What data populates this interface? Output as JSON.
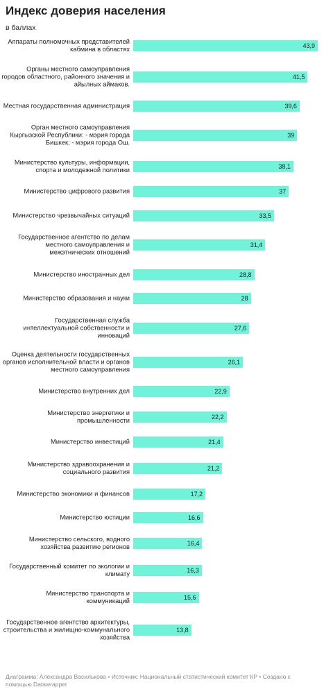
{
  "chart_data": {
    "type": "bar",
    "orientation": "horizontal",
    "title": "Индекс доверия населения",
    "subtitle": "в баллах",
    "color": "#70f3d9",
    "categories": [
      "Аппараты полномочных представителей\nкабмина в областях",
      "Органы местного самоуправления\nгородов областного, районного значения и\nайылных аймаков.",
      "Местная государственная администрация",
      "Орган местного самоуправления\nКыргызской Республики: - мэрия города\nБишкек; - мэрия города Ош.",
      "Министерство культуры, информации,\nспорта и молодежной политики",
      "Министерство цифрового развития",
      "Министерство чрезвычайных ситуаций",
      "Государственное агентство по делам\nместного самоуправления и\nмежэтнических отношений",
      "Министерство иностранных дел",
      "Министерство образования и науки",
      "Государственная служба\nинтеллектуальной собственности и\nинноваций",
      "Оценка деятельности государственных\nорганов исполнительной власти и органов\nместного самоуправления",
      "Министерство внутренних дел",
      "Министерство энергетики и\nпромышленности",
      "Министерство инвестиций",
      "Министерство здравоохранения и\nсоциального развития",
      "Министерство экономики и финансов",
      "Министерство юстиции",
      "Министерство сельского, водного\nхозяйства развитию регионов",
      "Государственный комитет по экологии и\nклимату",
      "Министерство транспорта и\nкоммуникаций",
      "Государственное агентство архитектуры,\nстроительства и жилищно-коммунального\nхозяйства"
    ],
    "values": [
      43.9,
      41.5,
      39.6,
      39,
      38.1,
      37,
      33.5,
      31.4,
      28.8,
      28,
      27.6,
      26.1,
      22.9,
      22.2,
      21.4,
      21.2,
      17.2,
      16.6,
      16.4,
      16.3,
      15.6,
      13.8
    ],
    "value_labels": [
      "43,9",
      "41,5",
      "39,6",
      "39",
      "38,1",
      "37",
      "33,5",
      "31,4",
      "28,8",
      "28",
      "27,6",
      "26,1",
      "22,9",
      "22,2",
      "21,4",
      "21,2",
      "17,2",
      "16,6",
      "16,4",
      "16,3",
      "15,6",
      "13,8"
    ],
    "footer": "Диаграмма: Александра Василькова • Источник: Национальный статистический комитет КР • Создано с помощью Datawrapper"
  }
}
